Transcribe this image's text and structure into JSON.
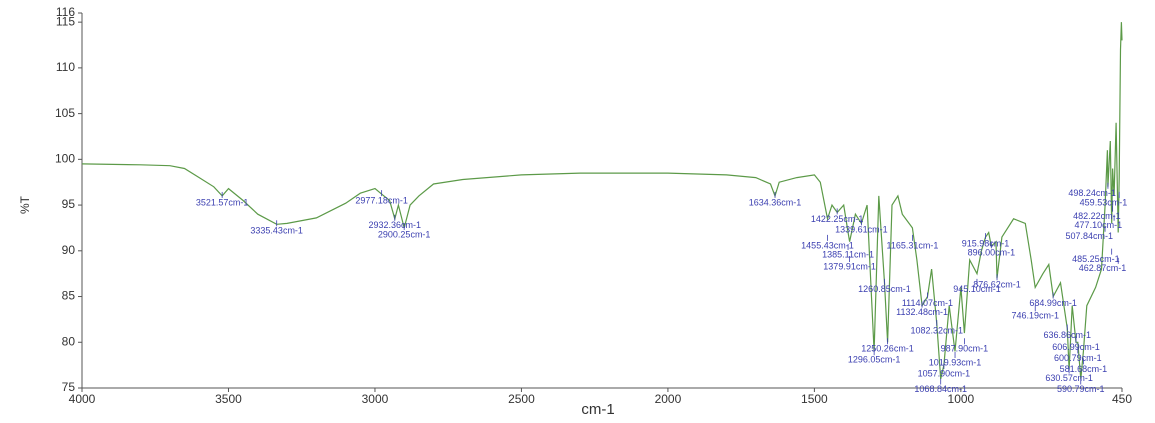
{
  "chart_data": {
    "type": "line",
    "x_label": "cm-1",
    "y_label": "%T",
    "color": "#5c9a48",
    "xlim": [
      4000,
      450
    ],
    "ylim": [
      75,
      116
    ],
    "xticks": [
      4000,
      3500,
      3000,
      2500,
      2000,
      1500,
      1000,
      450
    ],
    "yticks": [
      75,
      80,
      85,
      90,
      95,
      100,
      105,
      110,
      115,
      116
    ],
    "x": [
      4000,
      3800,
      3700,
      3650,
      3600,
      3550,
      3521.57,
      3500,
      3450,
      3400,
      3335.43,
      3300,
      3200,
      3100,
      3050,
      3000,
      2977.18,
      2950,
      2932.36,
      2920,
      2900.25,
      2880,
      2850,
      2800,
      2700,
      2500,
      2300,
      2000,
      1800,
      1700,
      1650,
      1634.36,
      1620,
      1560,
      1500,
      1480,
      1455.43,
      1440,
      1422.25,
      1400,
      1385.11,
      1379.91,
      1360,
      1339.61,
      1320,
      1296.05,
      1280,
      1260.85,
      1250.26,
      1235,
      1215,
      1200,
      1165.31,
      1150,
      1132.48,
      1114.07,
      1100,
      1082.32,
      1068.84,
      1057.9,
      1040,
      1019.93,
      1000,
      987.9,
      970,
      945.1,
      930,
      915.98,
      905,
      896,
      880,
      876.62,
      860,
      820,
      780,
      760,
      746.19,
      720,
      700,
      684.99,
      660,
      636.86,
      630.57,
      620,
      606.99,
      600.79,
      590.79,
      581.68,
      570,
      540,
      520,
      507.84,
      500,
      498,
      490,
      485.25,
      482,
      477,
      470,
      462.87,
      459.53,
      455,
      452,
      450
    ],
    "values": [
      99.5,
      99.4,
      99.3,
      99.0,
      98.0,
      97,
      96.0,
      96.8,
      95.5,
      94,
      92.9,
      93.0,
      93.6,
      95.2,
      96.3,
      96.8,
      96.2,
      95.5,
      93.5,
      95,
      92.5,
      95,
      96,
      97.3,
      97.8,
      98.3,
      98.5,
      98.5,
      98.3,
      98.0,
      97.3,
      96.0,
      97.5,
      98.0,
      98.3,
      97.5,
      93.5,
      95,
      94.2,
      95,
      92.0,
      91.0,
      94,
      93,
      95,
      79,
      96,
      86.5,
      80,
      95,
      96,
      94,
      92.5,
      89,
      84,
      85,
      88,
      82,
      76,
      77.5,
      84,
      79,
      86,
      81,
      89,
      87.5,
      90,
      91.5,
      92,
      90.5,
      91,
      87,
      91.5,
      93.5,
      93,
      89,
      86,
      87.5,
      88.5,
      85,
      86.5,
      81.5,
      77,
      84,
      80,
      80,
      76,
      79,
      84,
      86,
      88,
      95,
      101,
      97,
      102,
      93,
      99,
      96,
      104,
      92,
      98,
      112,
      115,
      113
    ],
    "annotations": [
      {
        "label": "3521.57cm-1",
        "x": 3521.57,
        "y": 96.0
      },
      {
        "label": "3335.43cm-1",
        "x": 3335.43,
        "y": 92.9
      },
      {
        "label": "2977.18cm-1",
        "x": 2977.18,
        "y": 96.2
      },
      {
        "label": "2932.36cm-1",
        "x": 2932.36,
        "y": 93.5
      },
      {
        "label": "2900.25cm-1",
        "x": 2900.25,
        "y": 92.5
      },
      {
        "label": "1634.36cm-1",
        "x": 1634.36,
        "y": 96.0
      },
      {
        "label": "1422.25cm-1",
        "x": 1422.25,
        "y": 94.2
      },
      {
        "label": "1339.61cm-1",
        "x": 1339.61,
        "y": 93
      },
      {
        "label": "1455.43cm-1",
        "x": 1455.43,
        "y": 91.3
      },
      {
        "label": "1165.31cm-1",
        "x": 1165.31,
        "y": 91.3
      },
      {
        "label": "1385.11cm-1",
        "x": 1385.11,
        "y": 90.3
      },
      {
        "label": "1379.91cm-1",
        "x": 1379.91,
        "y": 89.0
      },
      {
        "label": "1260.85cm-1",
        "x": 1260.85,
        "y": 86.5
      },
      {
        "label": "945.10cm-1",
        "x": 945.1,
        "y": 86.5
      },
      {
        "label": "1114.07cm-1",
        "x": 1114.07,
        "y": 85
      },
      {
        "label": "1132.48cm-1",
        "x": 1132.48,
        "y": 84
      },
      {
        "label": "1082.32cm-1",
        "x": 1082.32,
        "y": 82
      },
      {
        "label": "1250.26cm-1",
        "x": 1250.26,
        "y": 80
      },
      {
        "label": "987.90cm-1",
        "x": 987.9,
        "y": 80
      },
      {
        "label": "1296.05cm-1",
        "x": 1296.05,
        "y": 78.8
      },
      {
        "label": "1019.93cm-1",
        "x": 1019.93,
        "y": 78.5
      },
      {
        "label": "1057.90cm-1",
        "x": 1057.9,
        "y": 77.3
      },
      {
        "label": "1068.84cm-1",
        "x": 1068.84,
        "y": 75.6
      },
      {
        "label": "915.98cm-1",
        "x": 915.98,
        "y": 91.5
      },
      {
        "label": "896.00cm-1",
        "x": 896,
        "y": 90.5
      },
      {
        "label": "876.62cm-1",
        "x": 876.62,
        "y": 87
      },
      {
        "label": "684.99cm-1",
        "x": 684.99,
        "y": 85
      },
      {
        "label": "746.19cm-1",
        "x": 746.19,
        "y": 83.6
      },
      {
        "label": "636.86cm-1",
        "x": 636.86,
        "y": 81.5
      },
      {
        "label": "606.99cm-1",
        "x": 606.99,
        "y": 80.2
      },
      {
        "label": "600.79cm-1",
        "x": 600.79,
        "y": 79.0
      },
      {
        "label": "581.68cm-1",
        "x": 581.68,
        "y": 77.8
      },
      {
        "label": "630.57cm-1",
        "x": 630.57,
        "y": 76.8
      },
      {
        "label": "590.79cm-1",
        "x": 590.79,
        "y": 75.6
      },
      {
        "label": "498.24cm-1",
        "x": 498,
        "y": 97
      },
      {
        "label": "459.53cm-1",
        "x": 459.53,
        "y": 96
      },
      {
        "label": "482.22cm-1",
        "x": 482,
        "y": 94.5
      },
      {
        "label": "477.10cm-1",
        "x": 477,
        "y": 93.5
      },
      {
        "label": "507.84cm-1",
        "x": 507.84,
        "y": 92.3
      },
      {
        "label": "485.25cm-1",
        "x": 485.25,
        "y": 89.8
      },
      {
        "label": "462.87cm-1",
        "x": 462.87,
        "y": 88.8
      }
    ]
  }
}
